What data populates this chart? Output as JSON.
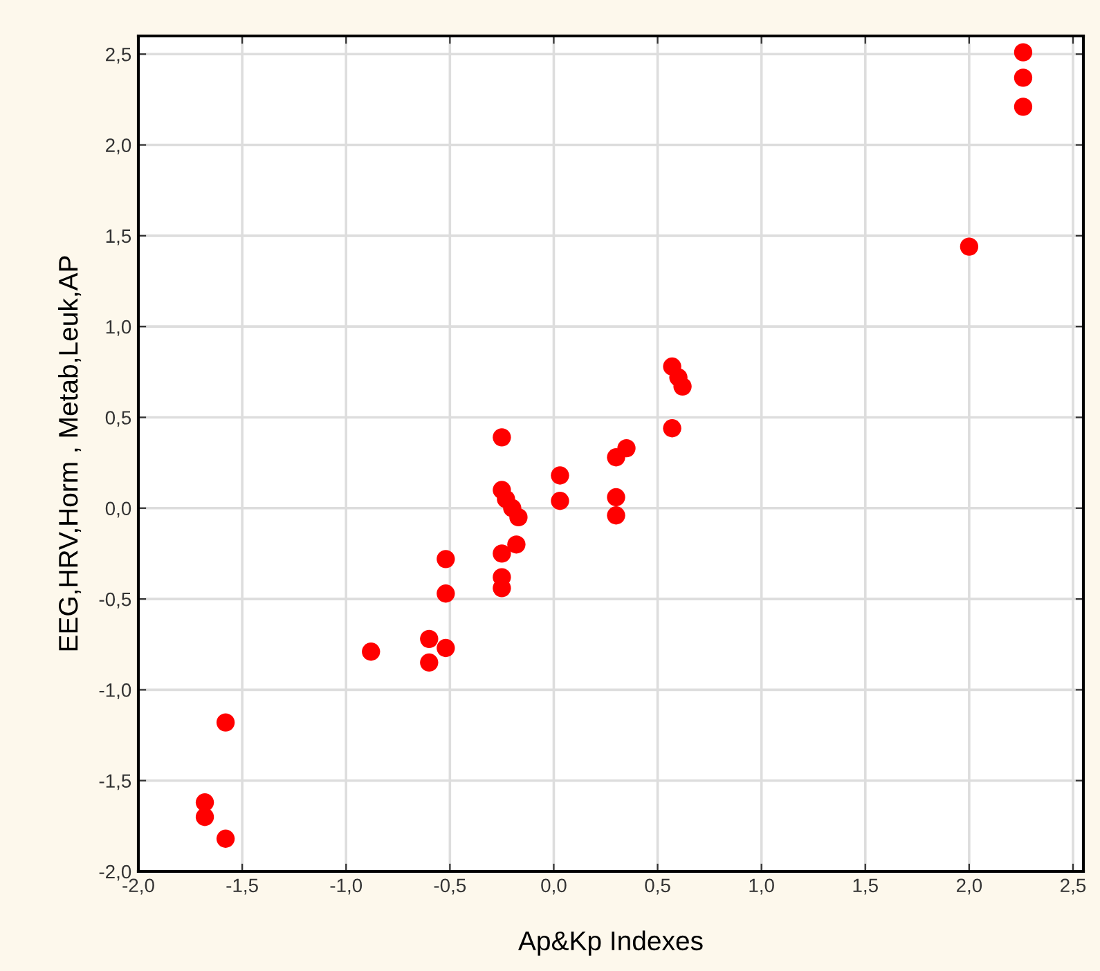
{
  "chart_data": {
    "type": "scatter",
    "xlabel": "Ap&Kp Indexes",
    "ylabel": "EEG,HRV,Horm , Metab,Leuk,AP",
    "xlim": [
      -2.0,
      2.55
    ],
    "ylim": [
      -2.0,
      2.6
    ],
    "xticks": [
      {
        "value": -2.0,
        "label": "-2,0"
      },
      {
        "value": -1.5,
        "label": "-1,5"
      },
      {
        "value": -1.0,
        "label": "-1,0"
      },
      {
        "value": -0.5,
        "label": "-0,5"
      },
      {
        "value": 0.0,
        "label": "0,0"
      },
      {
        "value": 0.5,
        "label": "0,5"
      },
      {
        "value": 1.0,
        "label": "1,0"
      },
      {
        "value": 1.5,
        "label": "1,5"
      },
      {
        "value": 2.0,
        "label": "2,0"
      },
      {
        "value": 2.5,
        "label": "2,5"
      }
    ],
    "yticks": [
      {
        "value": -2.0,
        "label": "-2,0"
      },
      {
        "value": -1.5,
        "label": "-1,5"
      },
      {
        "value": -1.0,
        "label": "-1,0"
      },
      {
        "value": -0.5,
        "label": "-0,5"
      },
      {
        "value": 0.0,
        "label": "0,0"
      },
      {
        "value": 0.5,
        "label": "0,5"
      },
      {
        "value": 1.0,
        "label": "1,0"
      },
      {
        "value": 1.5,
        "label": "1,5"
      },
      {
        "value": 2.0,
        "label": "2,0"
      },
      {
        "value": 2.5,
        "label": "2,5"
      }
    ],
    "grid": true,
    "marker": "circle",
    "legend": false,
    "series": [
      {
        "color": "#ff0000",
        "x": [
          -1.68,
          -1.68,
          -1.58,
          -1.58,
          -0.88,
          -0.6,
          -0.6,
          -0.52,
          -0.52,
          -0.52,
          -0.25,
          -0.25,
          -0.23,
          -0.2,
          -0.17,
          -0.25,
          -0.18,
          -0.25,
          -0.25,
          0.03,
          0.03,
          0.3,
          0.35,
          0.3,
          0.3,
          0.57,
          0.6,
          0.62,
          0.57,
          2.0,
          2.26,
          2.26,
          2.26
        ],
        "values": [
          -1.62,
          -1.7,
          -1.82,
          -1.18,
          -0.79,
          -0.72,
          -0.85,
          -0.77,
          -0.47,
          -0.28,
          0.39,
          0.1,
          0.05,
          0.0,
          -0.05,
          -0.25,
          -0.2,
          -0.38,
          -0.44,
          0.18,
          0.04,
          0.28,
          0.33,
          0.06,
          -0.04,
          0.78,
          0.72,
          0.67,
          0.44,
          1.44,
          2.51,
          2.37,
          2.21
        ]
      }
    ]
  }
}
